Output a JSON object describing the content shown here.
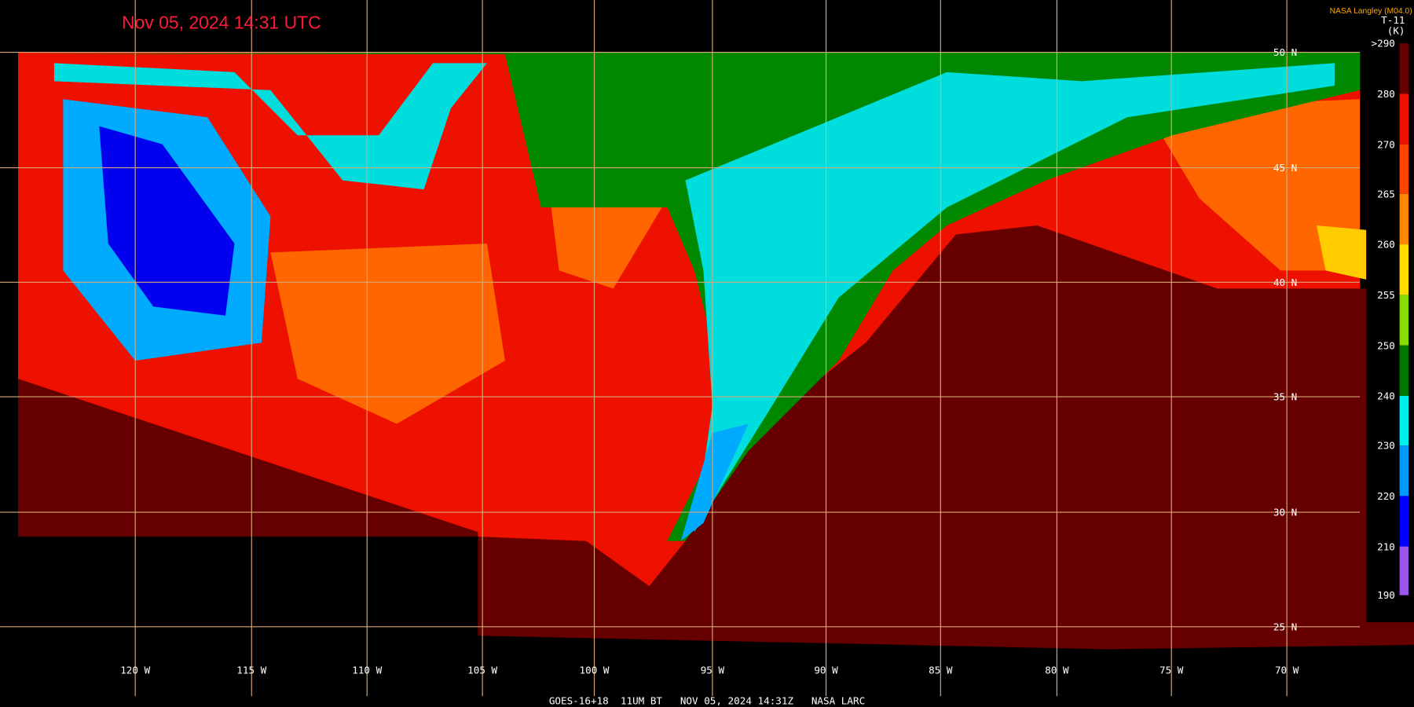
{
  "header": {
    "title": "Nov 05, 2024 14:31 UTC",
    "source": "NASA Langley (M04.0)"
  },
  "colorbar": {
    "label": "T-11",
    "unit": "(K)",
    "ticks": [
      ">290",
      "280",
      "270",
      "265",
      "260",
      "255",
      "250",
      "240",
      "230",
      "220",
      "210",
      "190"
    ]
  },
  "grid": {
    "lat_labels": [
      "50 N",
      "45 N",
      "40 N",
      "35 N",
      "30 N",
      "25 N"
    ],
    "lon_labels": [
      "120 W",
      "115 W",
      "110 W",
      "105 W",
      "100 W",
      "95 W",
      "90 W",
      "85 W",
      "80 W",
      "75 W",
      "70 W"
    ]
  },
  "footer": "GOES-16+18  11UM BT   NOV 05, 2024 14:31Z   NASA LARC"
}
